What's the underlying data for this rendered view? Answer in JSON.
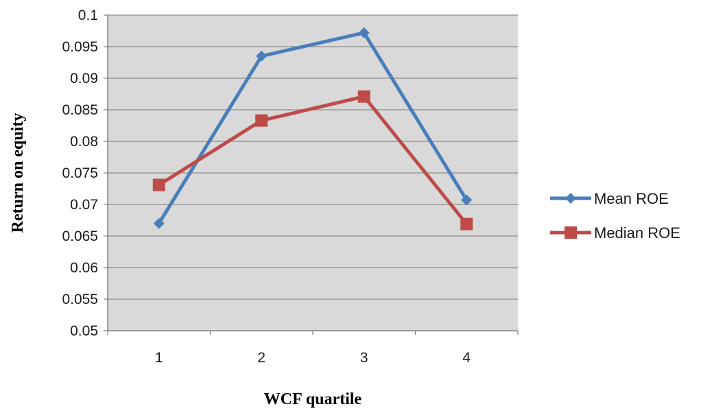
{
  "chart_data": {
    "type": "line",
    "title": "",
    "xlabel": "WCF quartile",
    "ylabel": "Return on equity",
    "categories": [
      "1",
      "2",
      "3",
      "4"
    ],
    "yticks": [
      "0.05",
      "0.055",
      "0.06",
      "0.065",
      "0.07",
      "0.075",
      "0.08",
      "0.085",
      "0.09",
      "0.095",
      "0.1"
    ],
    "ylim": [
      0.05,
      0.1
    ],
    "grid": true,
    "plot_background": "#d9d9d9",
    "legend_position": "right",
    "series": [
      {
        "name": "Mean ROE",
        "values": [
          0.067,
          0.0935,
          0.0972,
          0.0707
        ],
        "color": "#4a7ebb",
        "marker": "diamond"
      },
      {
        "name": "Median ROE",
        "values": [
          0.0731,
          0.0833,
          0.0871,
          0.0669
        ],
        "color": "#be4b48",
        "marker": "square"
      }
    ]
  }
}
